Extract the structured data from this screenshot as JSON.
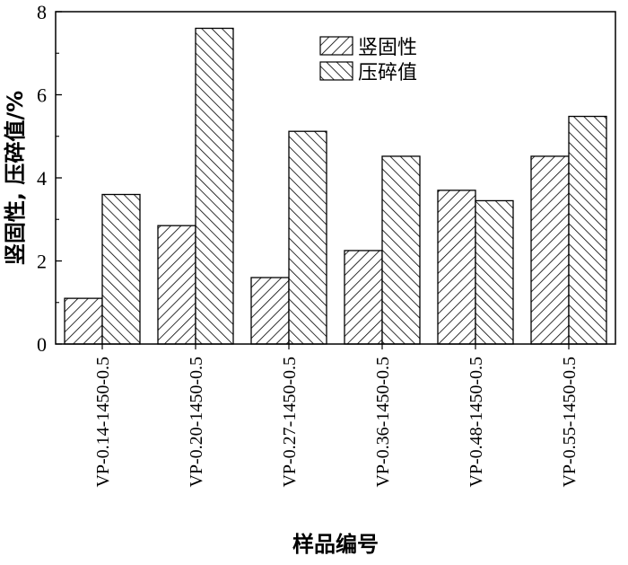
{
  "chart_data": {
    "type": "bar",
    "categories": [
      "VP-0.14-1450-0.5",
      "VP-0.20-1450-0.5",
      "VP-0.27-1450-0.5",
      "VP-0.36-1450-0.5",
      "VP-0.48-1450-0.5",
      "VP-0.55-1450-0.5"
    ],
    "series": [
      {
        "name": "竖固性",
        "values": [
          1.1,
          2.85,
          1.6,
          2.25,
          3.7,
          4.52
        ],
        "pattern": "forward-diagonal-hatch"
      },
      {
        "name": "压碎值",
        "values": [
          3.6,
          7.6,
          5.12,
          4.52,
          3.45,
          5.48
        ],
        "pattern": "backward-diagonal-hatch"
      }
    ],
    "xlabel": "样品编号",
    "ylabel": "竖固性, 压碎值/%",
    "ylim": [
      0,
      8
    ],
    "yticks": [
      "0",
      "2",
      "4",
      "6",
      "8"
    ],
    "legend_position": "top-center",
    "grid": false,
    "colors": {
      "bar_fill": "#ffffff",
      "stroke": "#000000"
    }
  }
}
